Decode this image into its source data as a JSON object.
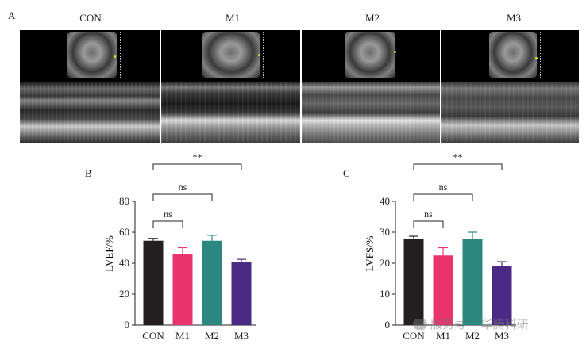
{
  "panels": {
    "a": "A",
    "b": "B",
    "c": "C"
  },
  "ultrasound": {
    "labels": [
      "CON",
      "M1",
      "M2",
      "M3"
    ]
  },
  "watermark": {
    "left": "服务号",
    "right": "华腾科研"
  },
  "colors": {
    "CON": "#231f20",
    "M1": "#e8336d",
    "M2": "#2b8780",
    "M3": "#4b2a85"
  },
  "chart_data": [
    {
      "type": "bar",
      "panel": "B",
      "categories": [
        "CON",
        "M1",
        "M2",
        "M3"
      ],
      "values": [
        54.5,
        46,
        54.5,
        40.5
      ],
      "errors": [
        1.5,
        4,
        3.5,
        2
      ],
      "ylabel": "LVEF/%",
      "xlabel": "",
      "ylim": [
        0,
        80
      ],
      "yticks": [
        "0",
        "20",
        "40",
        "60",
        "80"
      ],
      "yticks_values": [
        0,
        20,
        40,
        60,
        80
      ],
      "significance": [
        {
          "from": "CON",
          "to": "M1",
          "label": "ns"
        },
        {
          "from": "CON",
          "to": "M2",
          "label": "ns"
        },
        {
          "from": "CON",
          "to": "M3",
          "label": "**"
        }
      ]
    },
    {
      "type": "bar",
      "panel": "C",
      "categories": [
        "CON",
        "M1",
        "M2",
        "M3"
      ],
      "values": [
        27.8,
        22.5,
        27.7,
        19.2
      ],
      "errors": [
        0.9,
        2.5,
        2.3,
        1.3
      ],
      "ylabel": "LVFS/%",
      "xlabel": "",
      "ylim": [
        0,
        40
      ],
      "yticks": [
        "0",
        "10",
        "20",
        "30",
        "40"
      ],
      "yticks_values": [
        0,
        10,
        20,
        30,
        40
      ],
      "significance": [
        {
          "from": "CON",
          "to": "M1",
          "label": "ns"
        },
        {
          "from": "CON",
          "to": "M2",
          "label": "ns"
        },
        {
          "from": "CON",
          "to": "M3",
          "label": "**"
        }
      ]
    }
  ]
}
